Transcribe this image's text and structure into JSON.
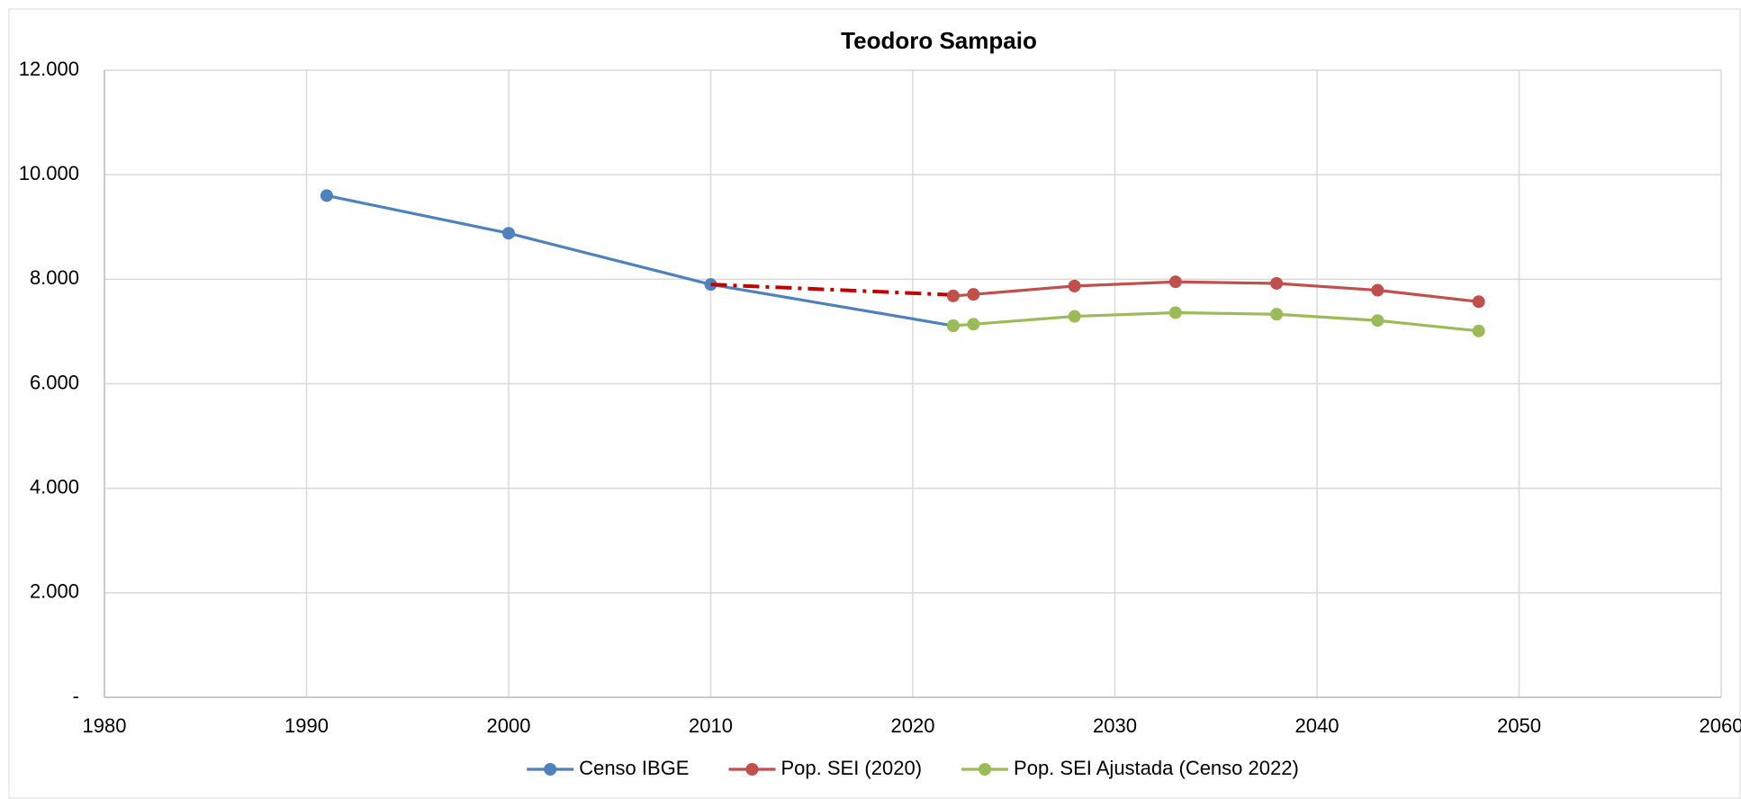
{
  "chart_data": {
    "type": "line",
    "title": "Teodoro Sampaio",
    "xlim": [
      1980,
      2060
    ],
    "xticks": [
      1980,
      1990,
      2000,
      2010,
      2020,
      2030,
      2040,
      2050,
      2060
    ],
    "ylim": [
      0,
      12000
    ],
    "yticks": [
      {
        "value": 0,
        "label": "-"
      },
      {
        "value": 2000,
        "label": "2.000"
      },
      {
        "value": 4000,
        "label": "4.000"
      },
      {
        "value": 6000,
        "label": "6.000"
      },
      {
        "value": 8000,
        "label": "8.000"
      },
      {
        "value": 10000,
        "label": "10.000"
      },
      {
        "value": 12000,
        "label": "12.000"
      }
    ],
    "grid": true,
    "legend": "bottom",
    "series": [
      {
        "name": "Censo IBGE",
        "color": "#4f81bd",
        "x": [
          1991,
          2000,
          2010,
          2022
        ],
        "values": [
          9600,
          8880,
          7900,
          7110
        ]
      },
      {
        "color": "#c00000",
        "style": "dash-dot",
        "x": [
          2010,
          2022
        ],
        "values": [
          7900,
          7700
        ]
      },
      {
        "name": "Pop. SEI (2020)",
        "color": "#c0504d",
        "x": [
          2022,
          2023,
          2028,
          2033,
          2038,
          2043,
          2048
        ],
        "values": [
          7680,
          7710,
          7870,
          7950,
          7920,
          7790,
          7570
        ]
      },
      {
        "name": "Pop. SEI Ajustada (Censo 2022)",
        "color": "#9bbb59",
        "x": [
          2022,
          2023,
          2028,
          2033,
          2038,
          2043,
          2048
        ],
        "values": [
          7110,
          7140,
          7290,
          7360,
          7330,
          7210,
          7010
        ]
      }
    ]
  }
}
